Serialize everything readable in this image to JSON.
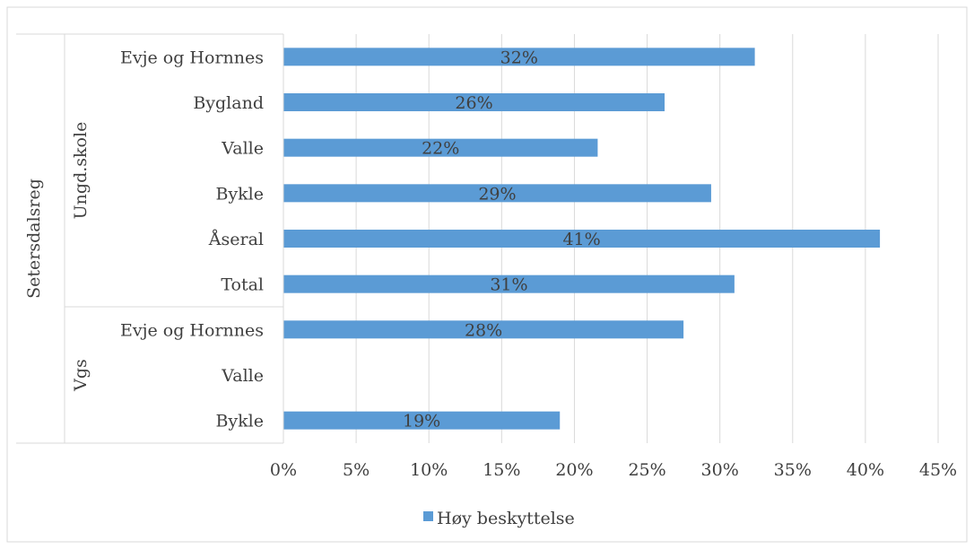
{
  "chart_data": {
    "type": "bar",
    "orientation": "horizontal",
    "title": "",
    "xlabel": "",
    "ylabel": "",
    "xlim": [
      0,
      0.45
    ],
    "x_ticks": [
      0,
      0.05,
      0.1,
      0.15,
      0.2,
      0.25,
      0.3,
      0.35,
      0.4,
      0.45
    ],
    "x_tick_labels": [
      "0%",
      "5%",
      "10%",
      "15%",
      "20%",
      "25%",
      "30%",
      "35%",
      "40%",
      "45%"
    ],
    "grid": "vertical",
    "legend_position": "bottom",
    "bar_color": "#5b9bd5",
    "outer_group": "Setersdalsreg",
    "groups": [
      {
        "name": "Ungd.skole",
        "categories": [
          "Evje og Hornnes",
          "Bygland",
          "Valle",
          "Bykle",
          "Åseral",
          "Total"
        ]
      },
      {
        "name": "Vgs",
        "categories": [
          "Evje og Hornnes",
          "Valle",
          "Bykle"
        ]
      }
    ],
    "categories": [
      "Evje og Hornnes",
      "Bygland",
      "Valle",
      "Bykle",
      "Åseral",
      "Total",
      "Evje og Hornnes",
      "Valle",
      "Bykle"
    ],
    "series": [
      {
        "name": "Høy beskyttelse",
        "values": [
          0.324,
          0.262,
          0.216,
          0.294,
          0.41,
          0.31,
          0.275,
          null,
          0.19
        ],
        "labels": [
          "32%",
          "26%",
          "22%",
          "29%",
          "41%",
          "31%",
          "28%",
          "",
          "19%"
        ]
      }
    ]
  }
}
